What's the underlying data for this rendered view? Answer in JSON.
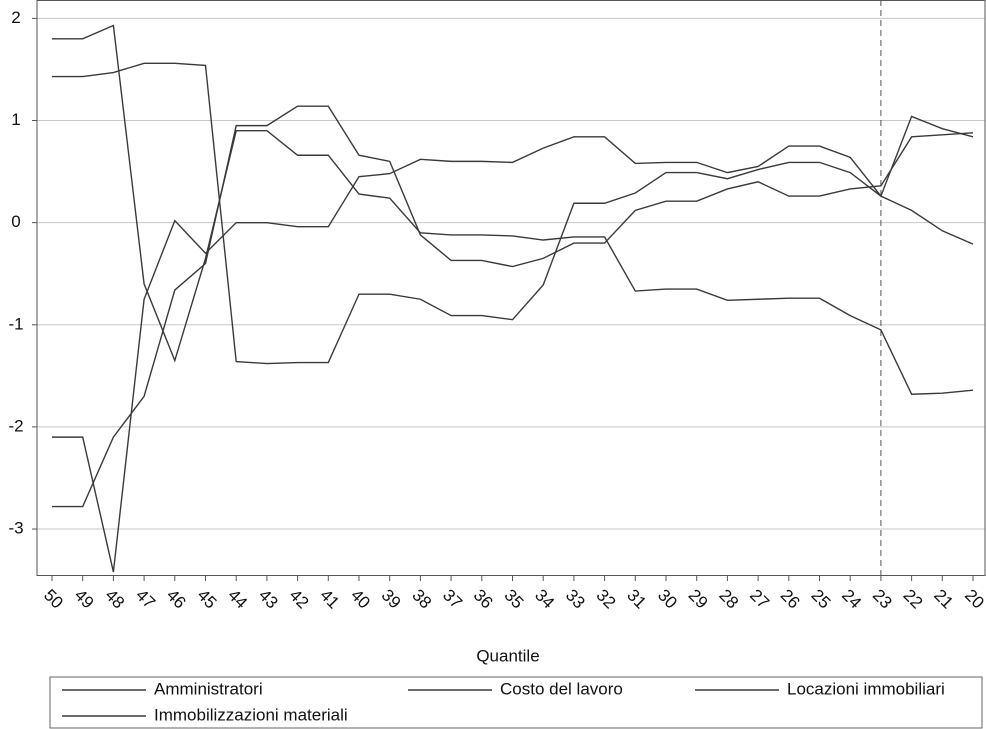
{
  "chart_data": {
    "type": "line",
    "x_label": "Quantile",
    "categories": [
      "50",
      "49",
      "48",
      "47",
      "46",
      "45",
      "44",
      "43",
      "42",
      "41",
      "40",
      "39",
      "38",
      "37",
      "36",
      "35",
      "34",
      "33",
      "32",
      "31",
      "30",
      "29",
      "28",
      "27",
      "26",
      "25",
      "24",
      "23",
      "22",
      "21",
      "20"
    ],
    "series": [
      {
        "name": "Amministratori",
        "color": "#3a3a3a",
        "values": [
          1.8,
          1.8,
          1.93,
          -0.6,
          -1.35,
          -0.35,
          0.9,
          0.9,
          0.66,
          0.66,
          0.28,
          0.24,
          -0.1,
          -0.12,
          -0.12,
          -0.13,
          -0.17,
          -0.14,
          -0.14,
          -0.67,
          -0.65,
          -0.65,
          -0.76,
          -0.75,
          -0.74,
          -0.74,
          -0.91,
          -1.05,
          -1.68,
          -1.67,
          -1.64
        ]
      },
      {
        "name": "Costo del lavoro",
        "color": "#3a3a3a",
        "values": [
          1.43,
          1.43,
          1.47,
          1.56,
          1.56,
          1.54,
          -1.36,
          -1.38,
          -1.37,
          -1.37,
          -0.7,
          -0.7,
          -0.75,
          -0.91,
          -0.91,
          -0.95,
          -0.61,
          0.19,
          0.19,
          0.29,
          0.49,
          0.49,
          0.43,
          0.52,
          0.59,
          0.59,
          0.49,
          0.26,
          0.12,
          -0.08,
          -0.21
        ]
      },
      {
        "name": "Locazioni immobiliari",
        "color": "#3a3a3a",
        "values": [
          -2.1,
          -2.1,
          -3.42,
          -0.75,
          0.02,
          -0.3,
          0.0,
          0.0,
          -0.04,
          -0.04,
          0.45,
          0.48,
          0.62,
          0.6,
          0.6,
          0.59,
          0.73,
          0.84,
          0.84,
          0.58,
          0.59,
          0.59,
          0.49,
          0.55,
          0.75,
          0.75,
          0.64,
          0.26,
          1.04,
          0.92,
          0.84
        ]
      },
      {
        "name": "Immobilizzazioni materiali",
        "color": "#3a3a3a",
        "values": [
          -2.78,
          -2.78,
          -2.1,
          -1.7,
          -0.66,
          -0.4,
          0.95,
          0.95,
          1.14,
          1.14,
          0.66,
          0.6,
          -0.12,
          -0.37,
          -0.37,
          -0.43,
          -0.35,
          -0.2,
          -0.2,
          0.12,
          0.21,
          0.21,
          0.33,
          0.4,
          0.26,
          0.26,
          0.33,
          0.36,
          0.84,
          0.86,
          0.88
        ]
      }
    ],
    "ylim": [
      -3.45,
      2.18
    ],
    "yticks": [
      -3,
      -2,
      -1,
      0,
      1,
      2
    ],
    "grid": true,
    "reference_line_at": "23"
  }
}
